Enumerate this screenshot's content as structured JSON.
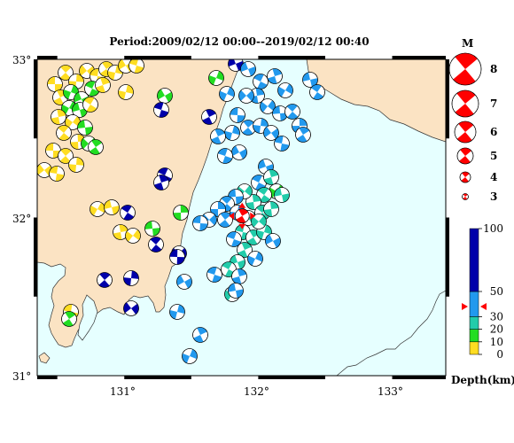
{
  "title": "Period:2009/02/12 00:00--2019/02/12 00:40",
  "lat_labels": [
    {
      "value": 33,
      "text": "33°"
    },
    {
      "value": 32,
      "text": "32°"
    },
    {
      "value": 31,
      "text": "31°"
    }
  ],
  "lon_labels": [
    {
      "value": 131,
      "text": "131°"
    },
    {
      "value": 132,
      "text": "132°"
    },
    {
      "value": 133,
      "text": "133°"
    }
  ],
  "extent": {
    "lon_min": 130.35,
    "lon_max": 133.4,
    "lat_min": 31.0,
    "lat_max": 33.0
  },
  "colors": {
    "sea": "#e6ffff",
    "land": "#fbe3c3",
    "compression": "#ff0000",
    "depth_0_10": "#ffdd22",
    "depth_10_20": "#22dd22",
    "depth_20_30": "#22ccaa",
    "depth_30_50": "#2299ee",
    "depth_50_100": "#0000aa"
  },
  "magnitude_legend": {
    "title": "M",
    "items": [
      {
        "label": "8",
        "m": 8
      },
      {
        "label": "7",
        "m": 7
      },
      {
        "label": "6",
        "m": 6
      },
      {
        "label": "5",
        "m": 5
      },
      {
        "label": "4",
        "m": 4
      },
      {
        "label": "3",
        "m": 3
      }
    ]
  },
  "depth_legend": {
    "title": "Depth(km)",
    "ticks": [
      "100",
      "50",
      "30",
      "20",
      "10",
      "0"
    ]
  },
  "main_event": {
    "lon": 131.88,
    "lat": 32.01,
    "depth": 38,
    "m": 5
  }
}
